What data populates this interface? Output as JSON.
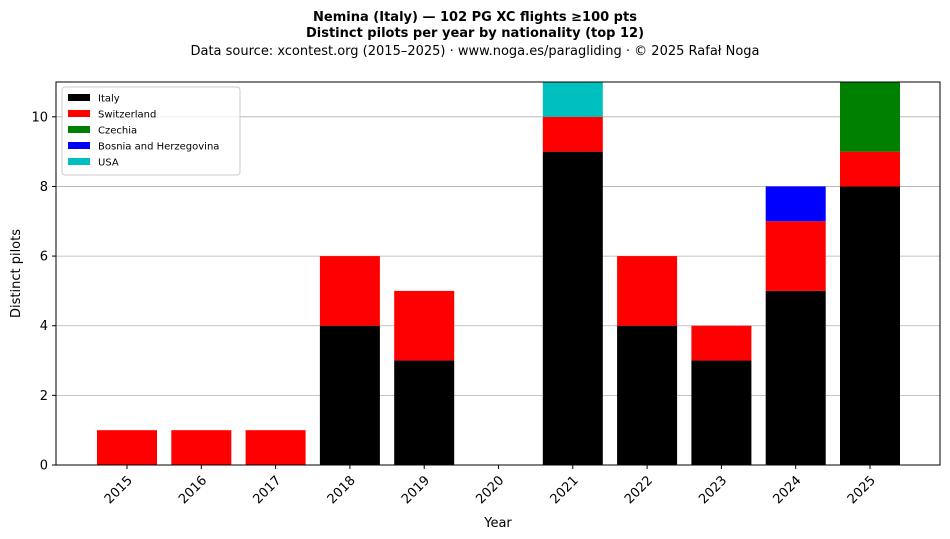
{
  "chart_data": {
    "type": "bar",
    "stacked": true,
    "title": "Nemina (Italy)  —  102 PG XC flights ≥100 pts",
    "subtitle": "Distinct pilots per year by nationality (top 12)",
    "source": "Data source: xcontest.org (2015–2025)  ·  www.noga.es/paragliding  ·  © 2025 Rafał Noga",
    "xlabel": "Year",
    "ylabel": "Distinct pilots",
    "ylim": [
      0,
      11
    ],
    "yticks": [
      0,
      2,
      4,
      6,
      8,
      10
    ],
    "grid": "y",
    "legend_position": "top-left",
    "categories": [
      "2015",
      "2016",
      "2017",
      "2018",
      "2019",
      "2020",
      "2021",
      "2022",
      "2023",
      "2024",
      "2025"
    ],
    "series": [
      {
        "name": "Italy",
        "color": "#000000",
        "values": [
          0,
          0,
          0,
          4,
          3,
          0,
          9,
          4,
          3,
          5,
          8
        ]
      },
      {
        "name": "Switzerland",
        "color": "#ff0000",
        "values": [
          1,
          1,
          1,
          2,
          2,
          0,
          1,
          2,
          1,
          2,
          1
        ]
      },
      {
        "name": "Czechia",
        "color": "#008000",
        "values": [
          0,
          0,
          0,
          0,
          0,
          0,
          0,
          0,
          0,
          0,
          2
        ]
      },
      {
        "name": "Bosnia and Herzegovina",
        "color": "#0000ff",
        "values": [
          0,
          0,
          0,
          0,
          0,
          0,
          0,
          0,
          0,
          1,
          0
        ]
      },
      {
        "name": "USA",
        "color": "#00bfbf",
        "values": [
          0,
          0,
          0,
          0,
          0,
          0,
          1,
          0,
          0,
          0,
          0
        ]
      }
    ]
  }
}
